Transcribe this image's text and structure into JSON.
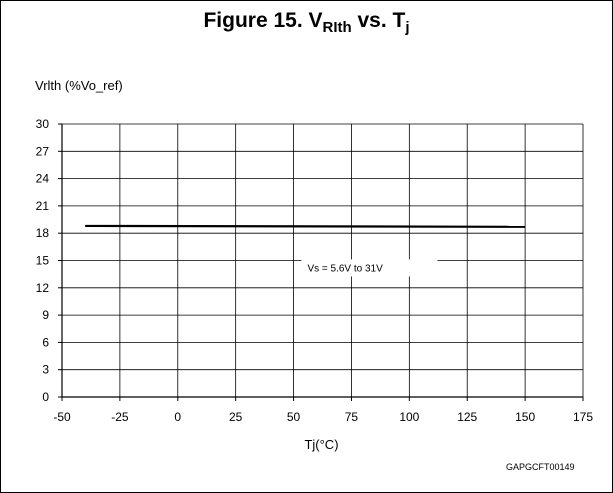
{
  "chart_data": {
    "type": "line",
    "title_prefix": "Figure 15. V",
    "title_sub1": "RIth",
    "title_mid": " vs. T",
    "title_sub2": "j",
    "ylabel": "Vrlth (%Vo_ref)",
    "xlabel": "Tj(°C)",
    "xlim": [
      -50,
      175
    ],
    "ylim": [
      0,
      30
    ],
    "xticks": [
      -50,
      -25,
      0,
      25,
      50,
      75,
      100,
      125,
      150,
      175
    ],
    "yticks": [
      0,
      3,
      6,
      9,
      12,
      15,
      18,
      21,
      24,
      27,
      30
    ],
    "grid": true,
    "series": [
      {
        "name": "",
        "x": [
          -40,
          150
        ],
        "y": [
          18.8,
          18.7
        ]
      }
    ],
    "annotation": {
      "text": "Vs = 5.6V to 31V",
      "x": 56,
      "y": 13.8
    },
    "figure_code": "GAPGCFT00149",
    "colors": {
      "line": "#000000",
      "grid": "#000000"
    }
  }
}
